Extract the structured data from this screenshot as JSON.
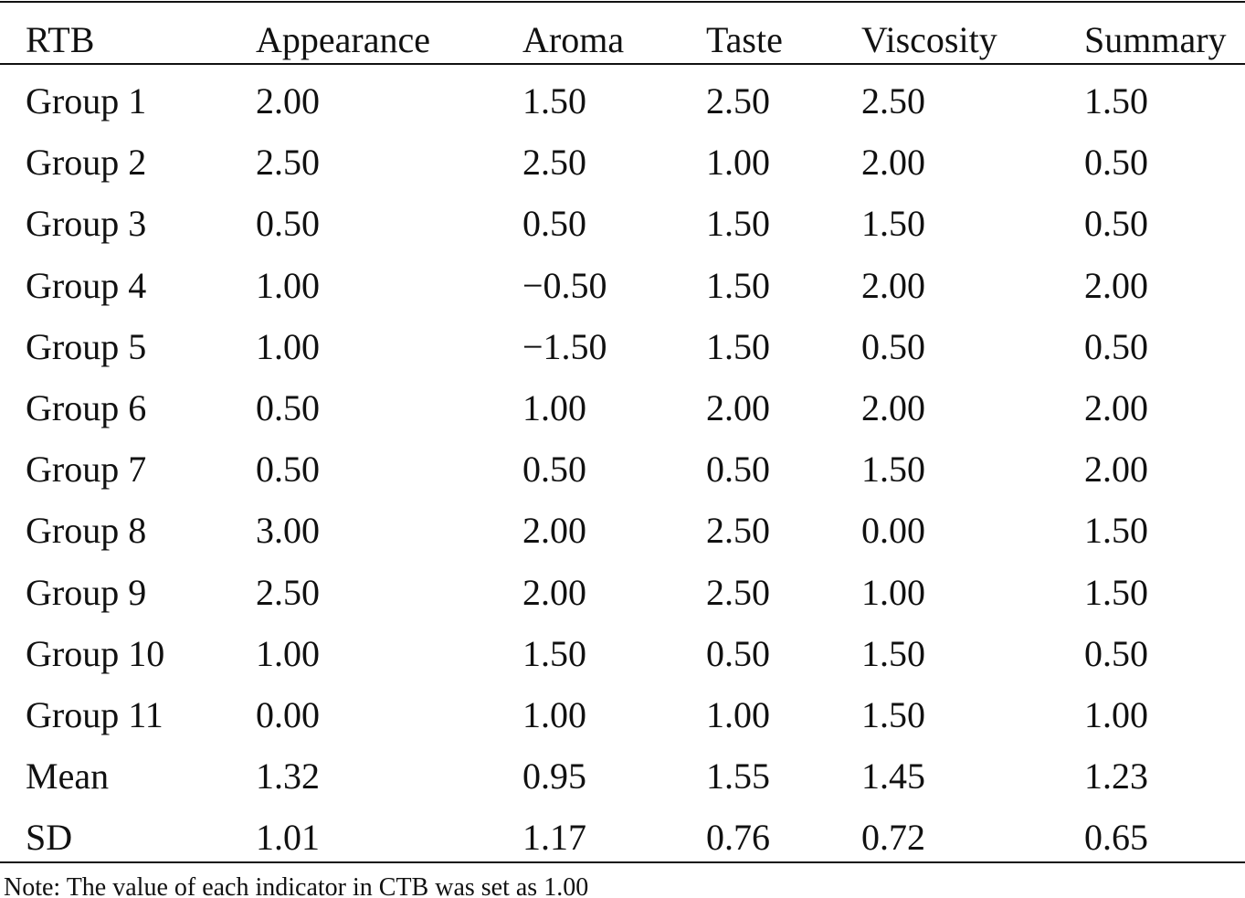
{
  "table": {
    "header": [
      "RTB",
      "Appearance",
      "Aroma",
      "Taste",
      "Viscosity",
      "Summary"
    ],
    "rows": [
      [
        "Group 1",
        "2.00",
        "1.50",
        "2.50",
        "2.50",
        "1.50"
      ],
      [
        "Group 2",
        "2.50",
        "2.50",
        "1.00",
        "2.00",
        "0.50"
      ],
      [
        "Group 3",
        "0.50",
        "0.50",
        "1.50",
        "1.50",
        "0.50"
      ],
      [
        "Group 4",
        "1.00",
        "−0.50",
        "1.50",
        "2.00",
        "2.00"
      ],
      [
        "Group 5",
        "1.00",
        "−1.50",
        "1.50",
        "0.50",
        "0.50"
      ],
      [
        "Group 6",
        "0.50",
        "1.00",
        "2.00",
        "2.00",
        "2.00"
      ],
      [
        "Group 7",
        "0.50",
        "0.50",
        "0.50",
        "1.50",
        "2.00"
      ],
      [
        "Group 8",
        "3.00",
        "2.00",
        "2.50",
        "0.00",
        "1.50"
      ],
      [
        "Group 9",
        "2.50",
        "2.00",
        "2.50",
        "1.00",
        "1.50"
      ],
      [
        "Group 10",
        "1.00",
        "1.50",
        "0.50",
        "1.50",
        "0.50"
      ],
      [
        "Group 11",
        "0.00",
        "1.00",
        "1.00",
        "1.50",
        "1.00"
      ],
      [
        "Mean",
        "1.32",
        "0.95",
        "1.55",
        "1.45",
        "1.23"
      ],
      [
        "SD",
        "1.01",
        "1.17",
        "0.76",
        "0.72",
        "0.65"
      ]
    ]
  },
  "note": "Note: The value of each indicator in CTB was set as 1.00"
}
